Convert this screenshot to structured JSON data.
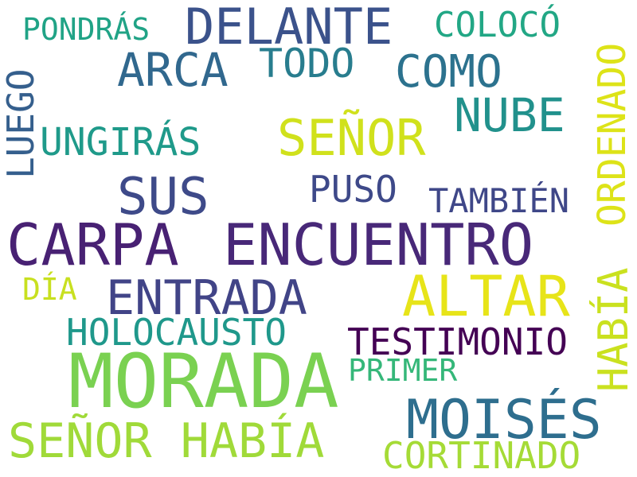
{
  "words": [
    {
      "key": "morada",
      "text": "MORADA",
      "color": "#7ad151"
    },
    {
      "key": "carpa",
      "text": "CARPA",
      "color": "#482173"
    },
    {
      "key": "encuentro",
      "text": "ENCUENTRO",
      "color": "#482878"
    },
    {
      "key": "altar",
      "text": "ALTAR",
      "color": "#e7e419"
    },
    {
      "key": "moises",
      "text": "MOISÉS",
      "color": "#2e6e8e"
    },
    {
      "key": "senor_habia",
      "text": "SEÑOR HABÍA",
      "color": "#a0da39"
    },
    {
      "key": "delante",
      "text": "DELANTE",
      "color": "#3b528b"
    },
    {
      "key": "sus",
      "text": "SUS",
      "color": "#3e4a89"
    },
    {
      "key": "entrada",
      "text": "ENTRADA",
      "color": "#414487"
    },
    {
      "key": "senor",
      "text": "SEÑOR",
      "color": "#d0e11c"
    },
    {
      "key": "nube",
      "text": "NUBE",
      "color": "#21918c"
    },
    {
      "key": "arca",
      "text": "ARCA",
      "color": "#31688e"
    },
    {
      "key": "como",
      "text": "COMO",
      "color": "#2c728e"
    },
    {
      "key": "todo",
      "text": "TODO",
      "color": "#287d8e"
    },
    {
      "key": "ungiras",
      "text": "UNGIRÁS",
      "color": "#1f9a8a"
    },
    {
      "key": "testimonio",
      "text": "TESTIMONIO",
      "color": "#440154"
    },
    {
      "key": "holocausto",
      "text": "HOLOCAUSTO",
      "color": "#1f988b"
    },
    {
      "key": "cortinado",
      "text": "CORTINADO",
      "color": "#a5db36"
    },
    {
      "key": "colocó",
      "text": "COLOCÓ",
      "color": "#22a785"
    },
    {
      "key": "puso",
      "text": "PUSO",
      "color": "#3e4989"
    },
    {
      "key": "tambien",
      "text": "TAMBIÉN",
      "color": "#3f4788"
    },
    {
      "key": "pondras",
      "text": "PONDRÁS",
      "color": "#20a386"
    },
    {
      "key": "primer",
      "text": "PRIMER",
      "color": "#35b779"
    },
    {
      "key": "dia",
      "text": "DÍA",
      "color": "#c8e020"
    },
    {
      "key": "ordenado",
      "text": "ORDENADO",
      "color": "#dde318"
    },
    {
      "key": "habia",
      "text": "HABÍA",
      "color": "#cae11f"
    },
    {
      "key": "luego",
      "text": "LUEGO",
      "color": "#355f8d"
    }
  ]
}
